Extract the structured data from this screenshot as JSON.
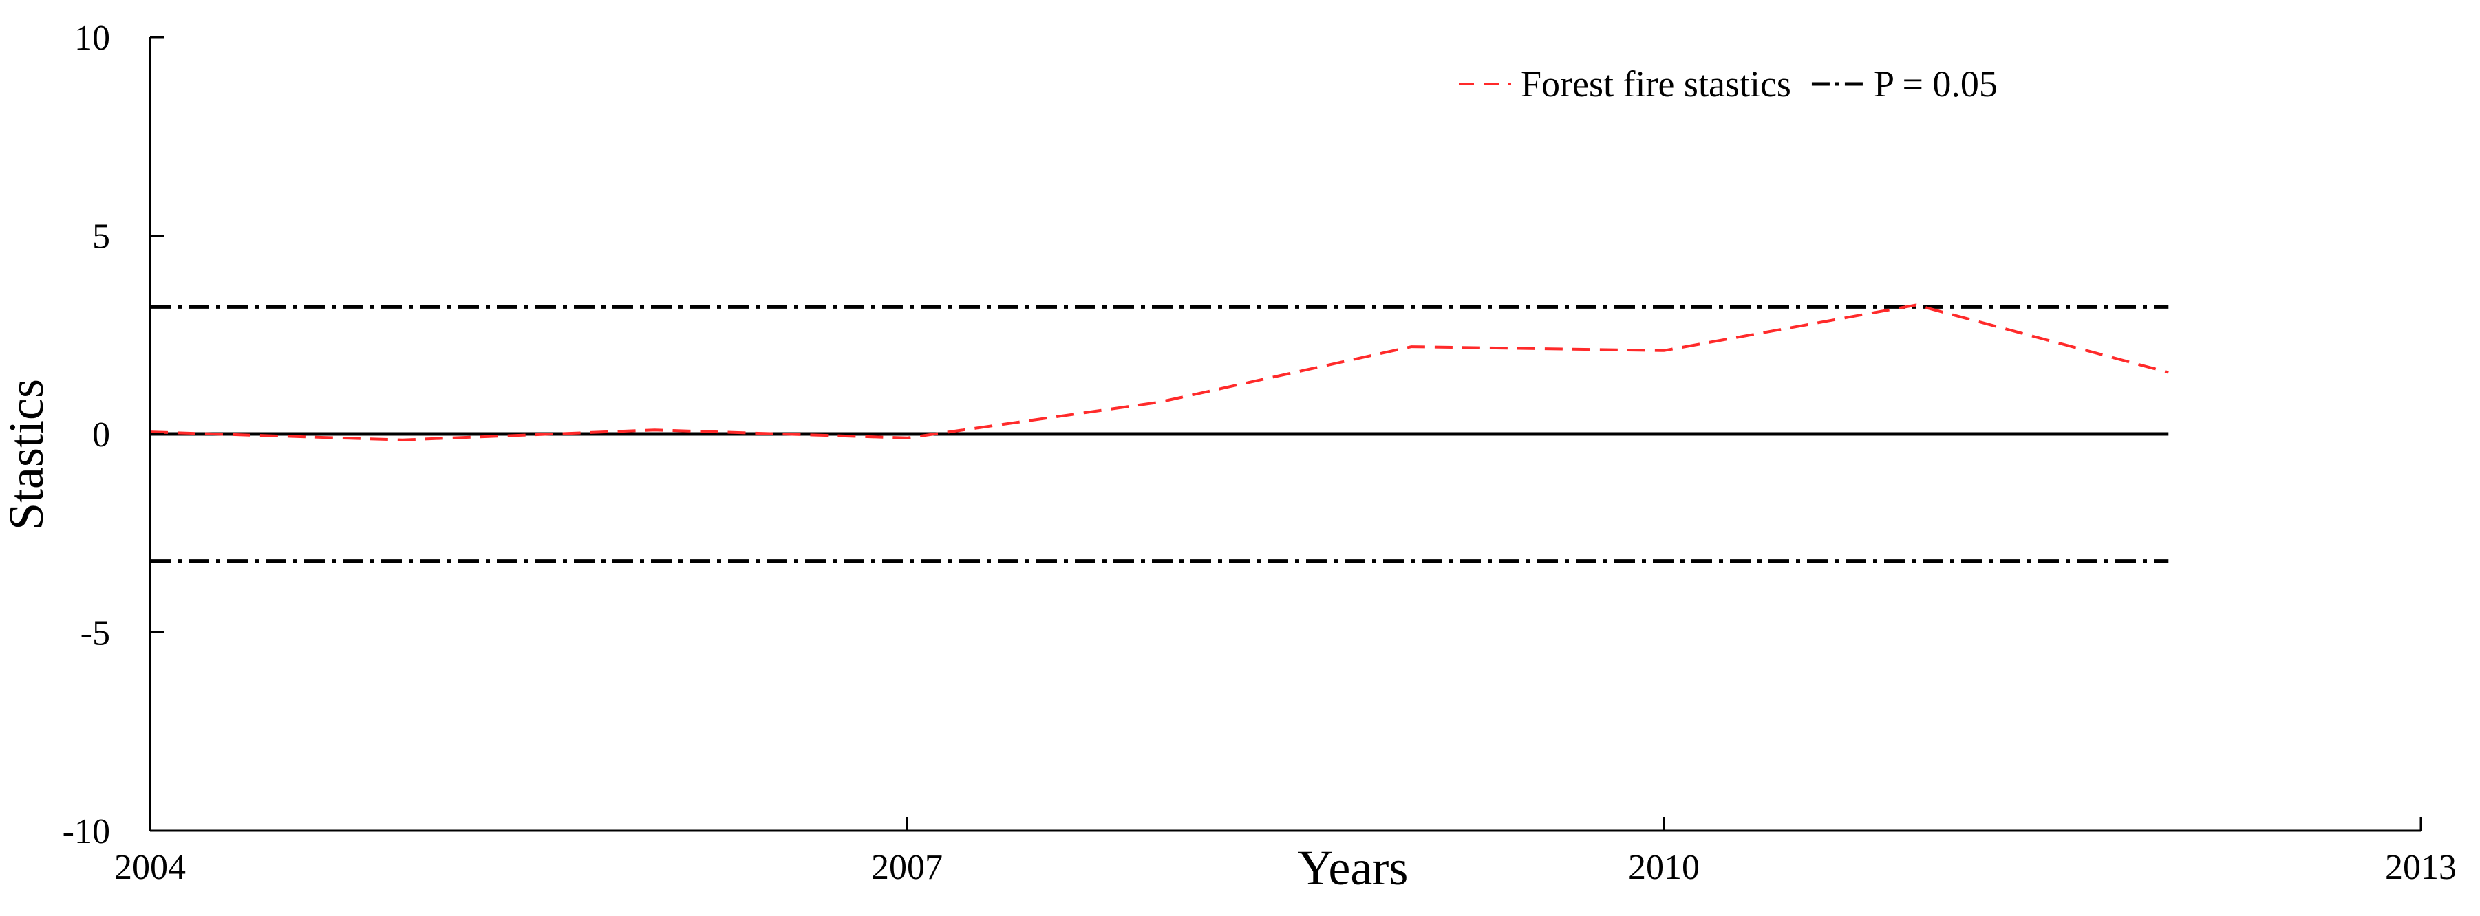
{
  "chart_data": {
    "type": "line",
    "title": "",
    "xlabel": "Years",
    "ylabel": "Stastics",
    "xlim": [
      2004,
      2013
    ],
    "ylim": [
      -10,
      10
    ],
    "x_ticks": [
      2004,
      2007,
      2010,
      2013
    ],
    "x_tick_labels": [
      "2004",
      "2007",
      "2010",
      "2013"
    ],
    "y_ticks": [
      10,
      5,
      0,
      -5,
      -10
    ],
    "y_tick_labels": [
      "10",
      "5",
      "0",
      "-5",
      "-10"
    ],
    "grid": false,
    "legend_position": "top-right",
    "series": [
      {
        "name": "Forest fire stastics",
        "style": "dashed",
        "color": "#ff2a2a",
        "x": [
          2004,
          2005,
          2006,
          2007,
          2008,
          2009,
          2010,
          2011,
          2012
        ],
        "y": [
          0.05,
          -0.15,
          0.1,
          -0.1,
          0.8,
          2.2,
          2.1,
          3.25,
          1.55
        ]
      },
      {
        "name": "P = 0.05",
        "style": "dashdot",
        "color": "#000000",
        "x": [
          2004,
          2012
        ],
        "y": [
          3.2,
          3.2
        ]
      },
      {
        "name": "",
        "style": "dashdot",
        "color": "#000000",
        "x": [
          2004,
          2012
        ],
        "y": [
          -3.2,
          -3.2
        ]
      },
      {
        "name": "",
        "style": "solid",
        "color": "#000000",
        "x": [
          2004,
          2012
        ],
        "y": [
          0,
          0
        ]
      }
    ]
  }
}
